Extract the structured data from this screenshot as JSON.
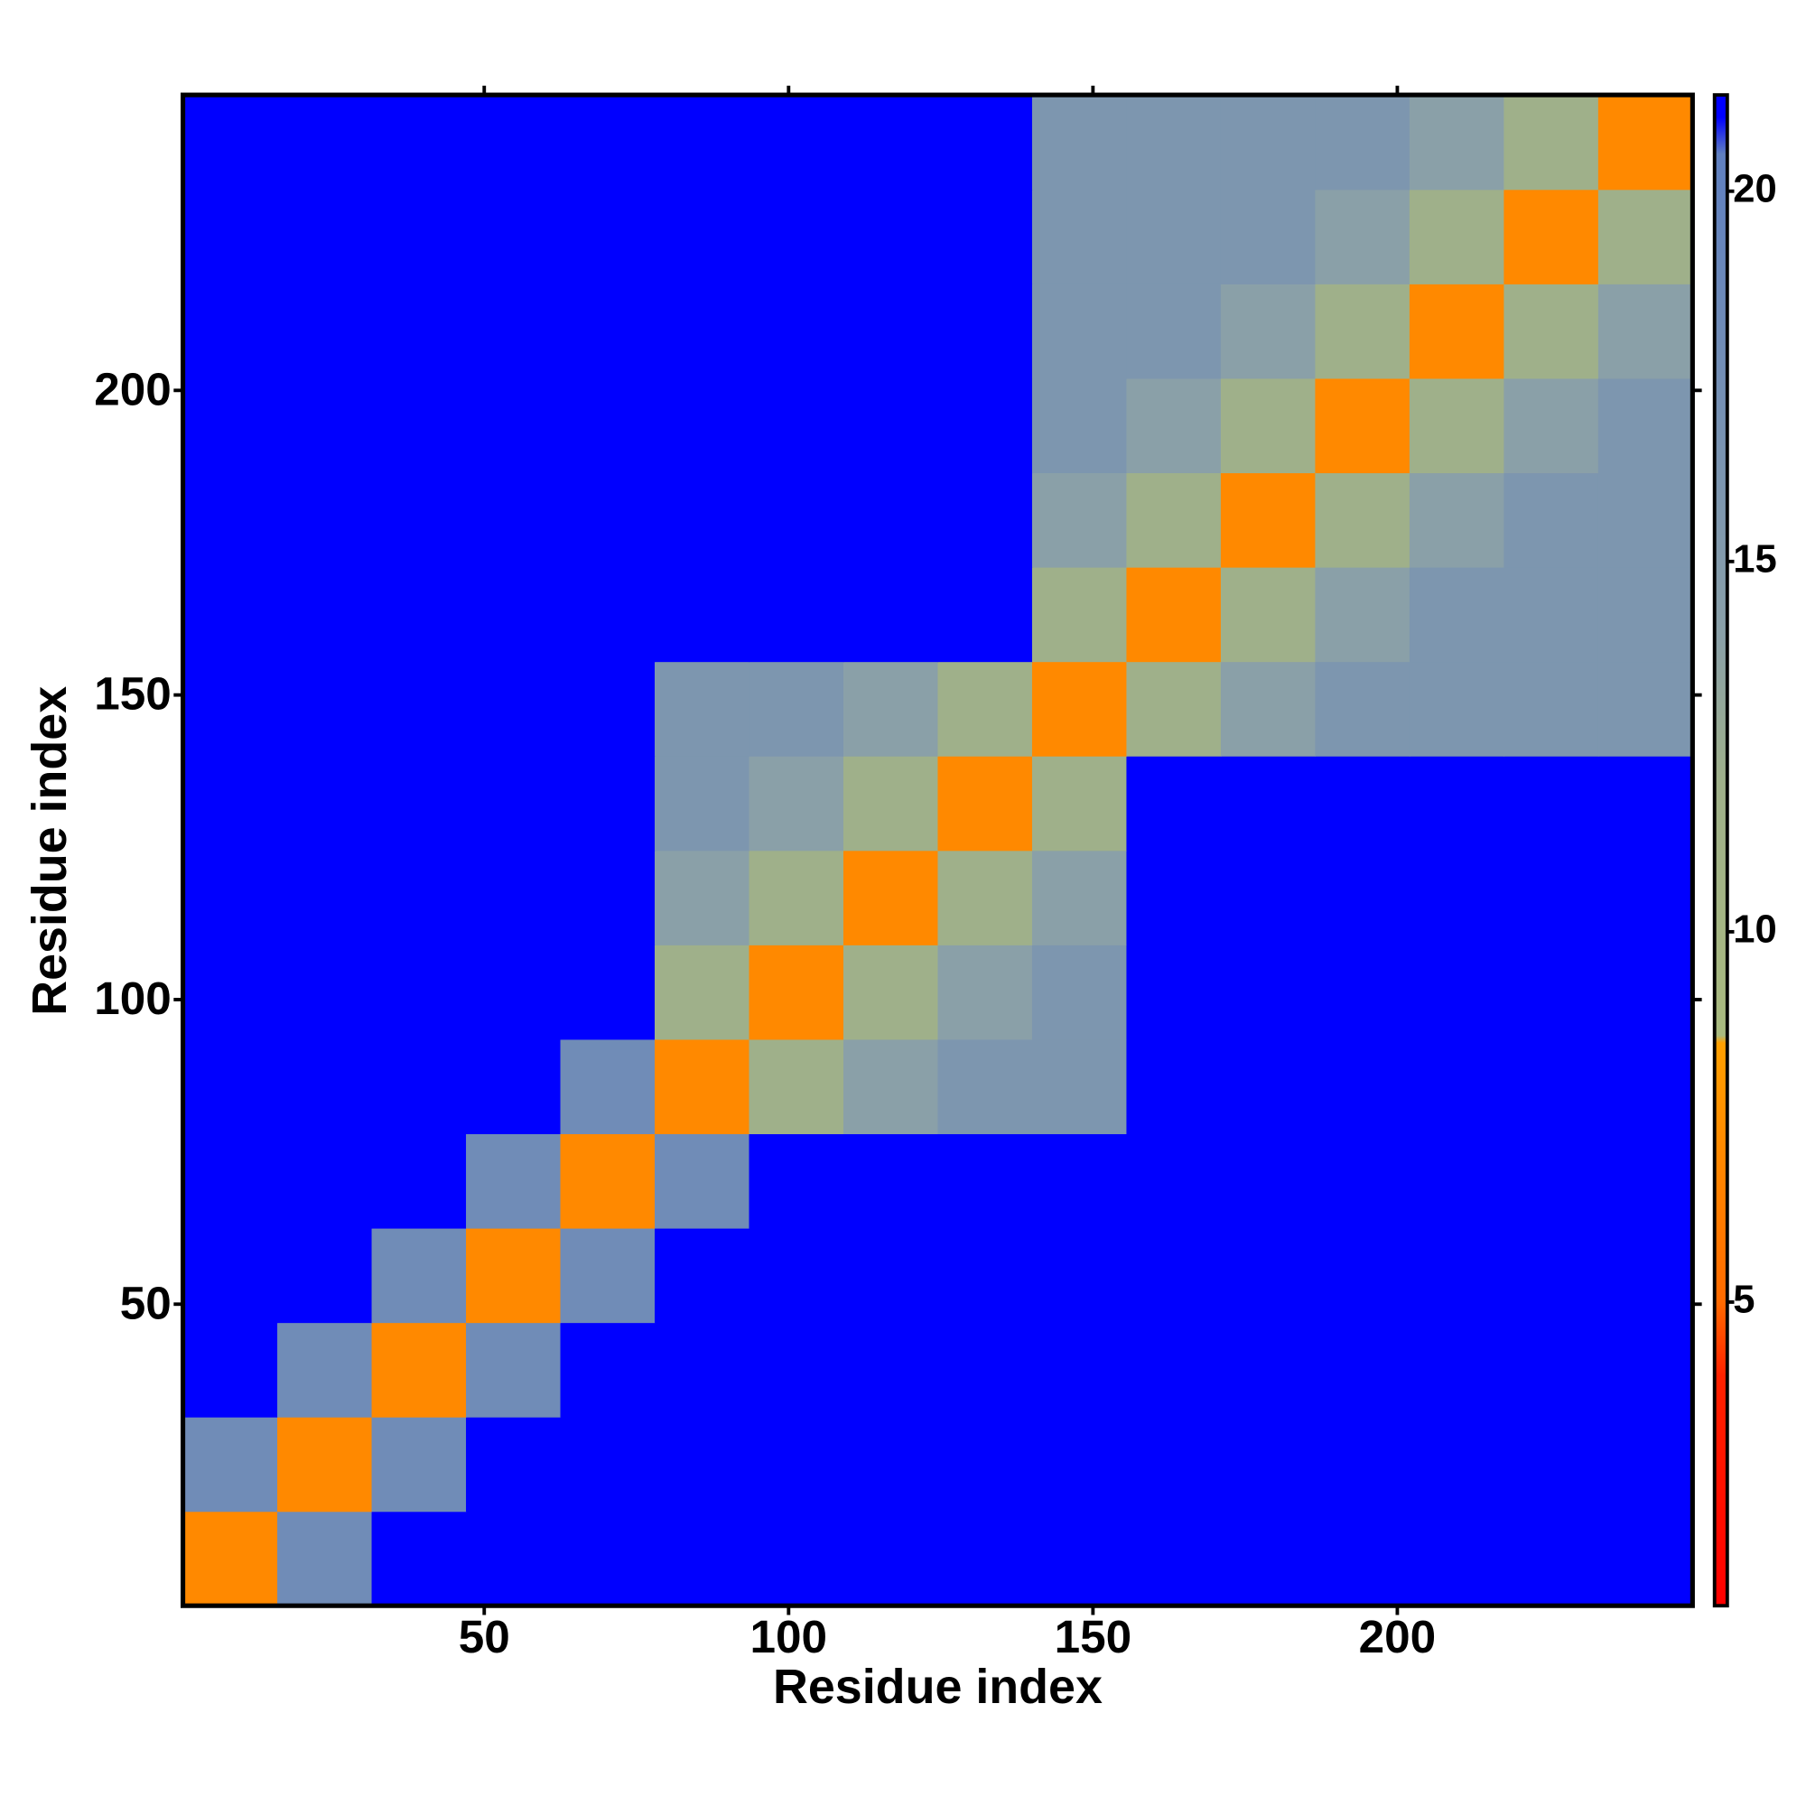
{
  "chart_data": {
    "type": "heatmap",
    "xlabel": "Residue index",
    "ylabel": "Residue index",
    "bins": [
      0.5,
      16,
      31.5,
      47,
      62.5,
      78,
      93.5,
      109,
      124.5,
      140,
      155.5,
      171,
      186.5,
      202,
      217.5,
      233,
      248.5
    ],
    "xlim": [
      0.5,
      248.5
    ],
    "ylim": [
      0.5,
      248.5
    ],
    "xticks": [
      50,
      100,
      150,
      200
    ],
    "yticks": [
      50,
      100,
      150,
      200
    ],
    "z": [
      [
        7,
        18,
        21,
        21,
        21,
        21,
        21,
        21,
        21,
        21,
        21,
        21,
        21,
        21,
        21,
        21
      ],
      [
        18,
        7,
        18,
        21,
        21,
        21,
        21,
        21,
        21,
        21,
        21,
        21,
        21,
        21,
        21,
        21
      ],
      [
        21,
        18,
        7,
        18,
        21,
        21,
        21,
        21,
        21,
        21,
        21,
        21,
        21,
        21,
        21,
        21
      ],
      [
        21,
        21,
        18,
        7,
        18,
        21,
        21,
        21,
        21,
        21,
        21,
        21,
        21,
        21,
        21,
        21
      ],
      [
        21,
        21,
        21,
        18,
        7,
        18,
        21,
        21,
        21,
        21,
        21,
        21,
        21,
        21,
        21,
        21
      ],
      [
        21,
        21,
        21,
        21,
        18,
        7,
        12,
        14,
        16,
        16,
        21,
        21,
        21,
        21,
        21,
        21
      ],
      [
        21,
        21,
        21,
        21,
        21,
        12,
        7,
        12,
        14,
        16,
        21,
        21,
        21,
        21,
        21,
        21
      ],
      [
        21,
        21,
        21,
        21,
        21,
        14,
        12,
        7,
        12,
        14,
        21,
        21,
        21,
        21,
        21,
        21
      ],
      [
        21,
        21,
        21,
        21,
        21,
        16,
        14,
        12,
        7,
        12,
        21,
        21,
        21,
        21,
        21,
        21
      ],
      [
        21,
        21,
        21,
        21,
        21,
        16,
        16,
        14,
        12,
        7,
        12,
        14,
        16,
        16,
        16,
        16
      ],
      [
        21,
        21,
        21,
        21,
        21,
        21,
        21,
        21,
        21,
        12,
        7,
        12,
        14,
        16,
        16,
        16
      ],
      [
        21,
        21,
        21,
        21,
        21,
        21,
        21,
        21,
        21,
        14,
        12,
        7,
        12,
        14,
        16,
        16
      ],
      [
        21,
        21,
        21,
        21,
        21,
        21,
        21,
        21,
        21,
        16,
        14,
        12,
        7,
        12,
        14,
        16
      ],
      [
        21,
        21,
        21,
        21,
        21,
        21,
        21,
        21,
        21,
        16,
        16,
        14,
        12,
        7,
        12,
        14
      ],
      [
        21,
        21,
        21,
        21,
        21,
        21,
        21,
        21,
        21,
        16,
        16,
        16,
        14,
        12,
        7,
        12
      ],
      [
        21,
        21,
        21,
        21,
        21,
        21,
        21,
        21,
        21,
        16,
        16,
        16,
        16,
        14,
        12,
        7
      ]
    ],
    "colorbar_lim": [
      0.9,
      21.3
    ],
    "colorbar_ticks": [
      5,
      10,
      15,
      20
    ],
    "colorscale": [
      {
        "value": 0.9,
        "color": "#ff0000"
      },
      {
        "value": 4,
        "color": "#ff2200"
      },
      {
        "value": 5,
        "color": "#ff6a00"
      },
      {
        "value": 8.5,
        "color": "#ffa000"
      },
      {
        "value": 8.6,
        "color": "#a9ba7f"
      },
      {
        "value": 12,
        "color": "#9fb08a"
      },
      {
        "value": 14,
        "color": "#8aa0a8"
      },
      {
        "value": 20.5,
        "color": "#6080c0"
      },
      {
        "value": 21,
        "color": "#0000ff"
      },
      {
        "value": 21.3,
        "color": "#0000ff"
      }
    ]
  }
}
